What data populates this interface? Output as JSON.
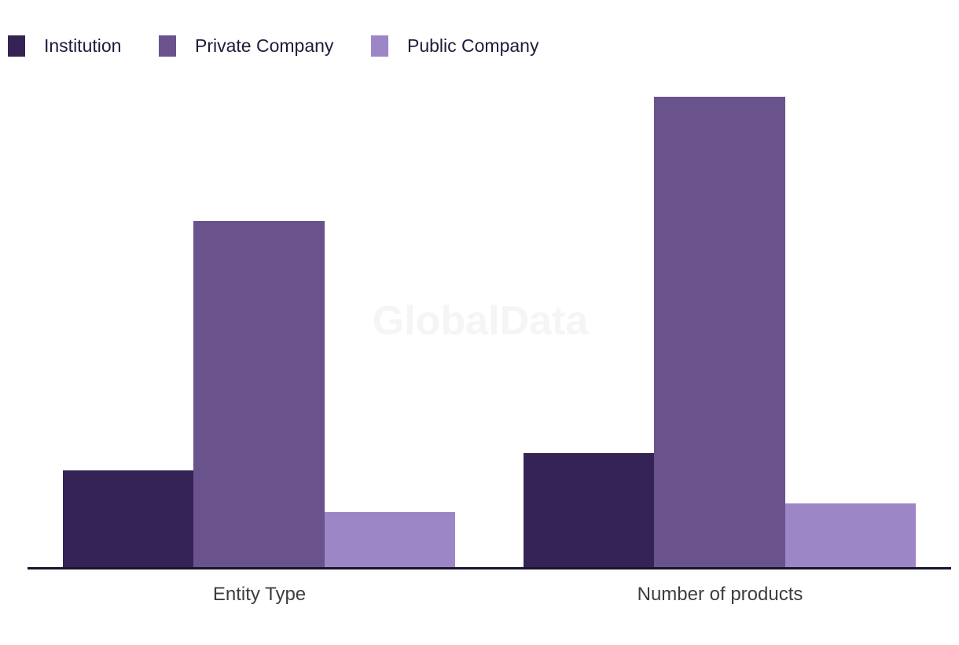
{
  "watermark": "GlobalData",
  "legend": {
    "items": [
      {
        "label": "Institution",
        "color": "#352355"
      },
      {
        "label": "Private Company",
        "color": "#6A528C"
      },
      {
        "label": "Public Company",
        "color": "#9C86C5"
      }
    ]
  },
  "axis": {
    "line_color": "#16152D",
    "label_color": "#3D3D3D"
  },
  "chart_data": {
    "type": "bar",
    "title": "",
    "xlabel": "",
    "ylabel": "",
    "categories": [
      "Entity Type",
      "Number of products"
    ],
    "series": [
      {
        "name": "Institution",
        "color": "#352355",
        "values": [
          125,
          147
        ]
      },
      {
        "name": "Private Company",
        "color": "#6A528C",
        "values": [
          442,
          600
        ]
      },
      {
        "name": "Public Company",
        "color": "#9C86C5",
        "values": [
          72,
          83
        ]
      }
    ],
    "ylim": [
      0,
      600
    ],
    "y_axis_shown": false,
    "value_note": "No y-axis or data labels visible; values are estimated relative heights (pixels).",
    "grid": false,
    "legend_position": "top-left",
    "watermark": "GlobalData"
  }
}
